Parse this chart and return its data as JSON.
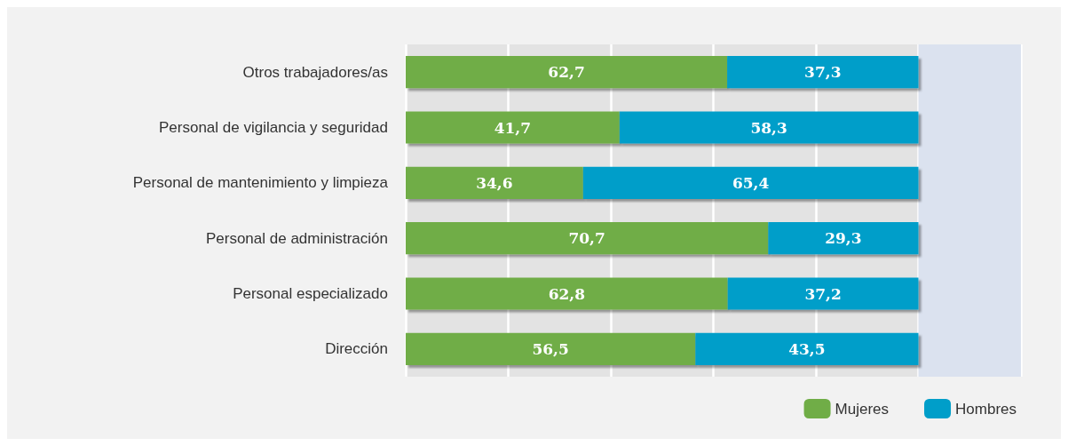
{
  "chart_data": {
    "type": "bar",
    "orientation": "horizontal",
    "stacked": true,
    "categories": [
      "Otros trabajadores/as",
      "Personal de vigilancia y seguridad",
      "Personal de mantenimiento y limpieza",
      "Personal de administración",
      "Personal especializado",
      "Dirección"
    ],
    "series": [
      {
        "name": "Mujeres",
        "color": "#70ad47",
        "values": [
          62.7,
          41.7,
          34.6,
          70.7,
          62.8,
          56.5
        ],
        "value_labels": [
          "62,7",
          "41,7",
          "34,6",
          "70,7",
          "62,8",
          "56,5"
        ]
      },
      {
        "name": "Hombres",
        "color": "#009ec9",
        "values": [
          37.3,
          58.3,
          65.4,
          29.3,
          37.2,
          43.5
        ],
        "value_labels": [
          "37,3",
          "58,3",
          "65,4",
          "29,3",
          "37,2",
          "43,5"
        ]
      }
    ],
    "xlim": [
      0,
      120
    ],
    "xticks": [
      {
        "value": 0,
        "label": null
      },
      {
        "value": 20,
        "label": null
      },
      {
        "value": 40,
        "label": null
      },
      {
        "value": 60,
        "label": null
      },
      {
        "value": 80,
        "label": null
      },
      {
        "value": 100,
        "label": null
      },
      {
        "value": 120,
        "label": null
      }
    ],
    "bands": [
      {
        "axis": "x",
        "from": 100,
        "to": 120,
        "color": "#dbe2ef"
      }
    ],
    "grid": "x",
    "legend": "bottom right",
    "tick_labels": "y"
  }
}
